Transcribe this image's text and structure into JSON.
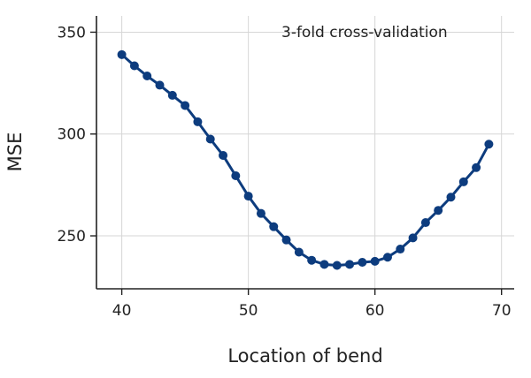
{
  "chart_data": {
    "type": "line",
    "title": "",
    "xlabel": "Location of bend",
    "ylabel": "MSE",
    "xlim": [
      38,
      71
    ],
    "ylim": [
      224,
      358
    ],
    "xticks": [
      40,
      50,
      60,
      70
    ],
    "yticks": [
      250,
      300,
      350
    ],
    "grid": true,
    "annotation": "3-fold cross-validation",
    "series": [
      {
        "name": "",
        "color": "#0d3c7e",
        "x": [
          40,
          41,
          42,
          43,
          44,
          45,
          46,
          47,
          48,
          49,
          50,
          51,
          52,
          53,
          54,
          55,
          56,
          57,
          58,
          59,
          60,
          61,
          62,
          63,
          64,
          65,
          66,
          67,
          68,
          69
        ],
        "y": [
          339,
          333.5,
          328.5,
          324,
          319,
          314,
          306,
          297.5,
          289.5,
          279.5,
          269.5,
          261,
          254.5,
          248,
          242,
          238,
          236,
          235.5,
          236,
          237,
          237.5,
          239.5,
          243.5,
          249,
          256.5,
          262.5,
          269,
          276.5,
          283.5,
          295
        ]
      }
    ]
  }
}
